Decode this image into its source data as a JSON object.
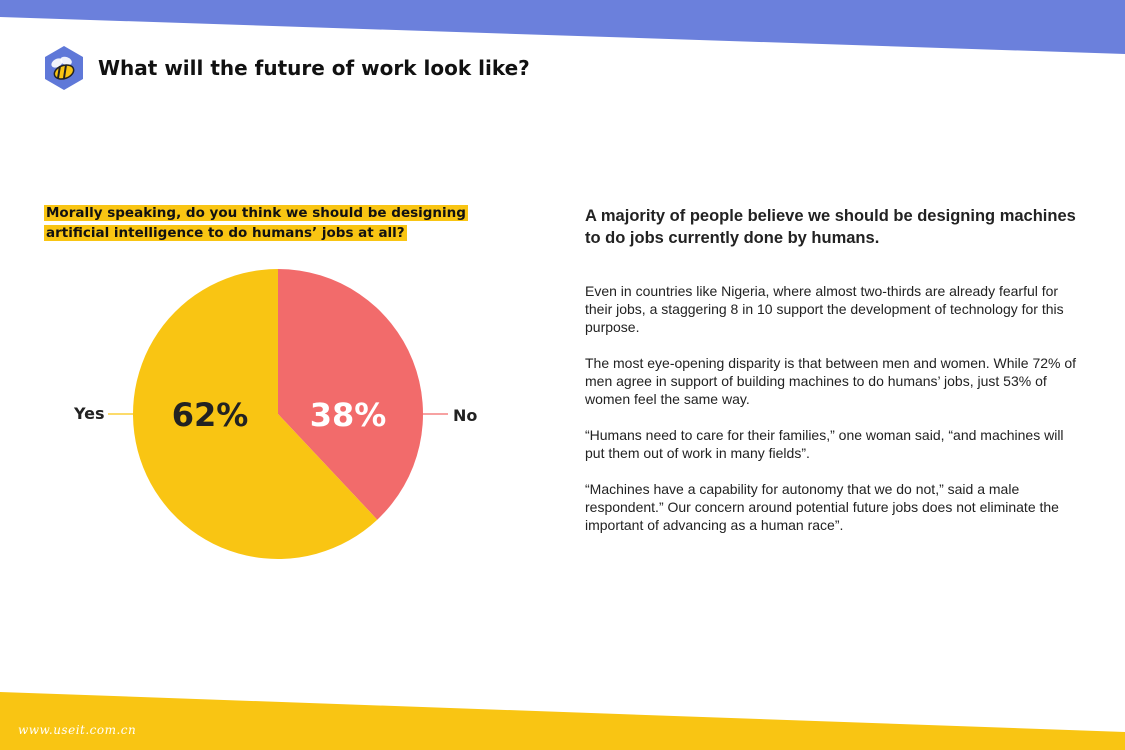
{
  "colors": {
    "top_band": "#6b80dc",
    "bottom_band": "#f9c513",
    "logo_bg": "#5f78d8",
    "yes": "#f9c513",
    "no": "#f26b6b",
    "highlight": "#f9c513"
  },
  "header": {
    "title": "What will the future of work look like?",
    "logo_icon": "bee-icon"
  },
  "question": "Morally speaking, do you think we should be designing artificial intelligence to do humans’ jobs at all?",
  "chart_data": {
    "type": "pie",
    "slices": [
      {
        "label": "No",
        "value": 38,
        "value_label": "38%",
        "color": "#f26b6b"
      },
      {
        "label": "Yes",
        "value": 62,
        "value_label": "62%",
        "color": "#f9c513"
      }
    ]
  },
  "article": {
    "headline": "A majority of people believe we should be designing machines to do jobs currently done by humans.",
    "paragraphs": [
      "Even in countries like Nigeria, where almost two-thirds are already fearful for their jobs, a staggering 8 in 10 support the development of technology for this purpose.",
      "The most eye-opening disparity is that between men and women. While 72% of men agree in support of building machines to do humans’ jobs, just 53% of women feel the same way.",
      "“Humans need to care for their families,” one woman said, “and machines will put them out of work in many fields”.",
      "“Machines have a capability for autonomy that we do not,” said a male respondent.” Our concern around potential future jobs does not eliminate the important of advancing as a human race”."
    ]
  },
  "watermark": "www.useit.com.cn"
}
